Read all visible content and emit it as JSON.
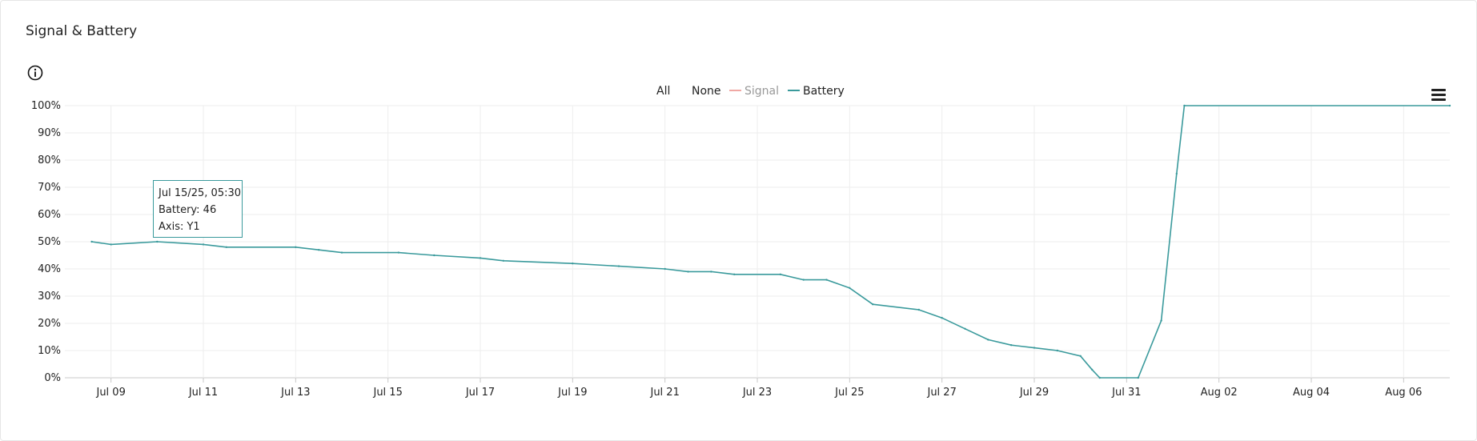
{
  "title": "Signal & Battery",
  "icons": {
    "info": "info-icon",
    "menu": "hamburger-menu-icon"
  },
  "legend": {
    "all": "All",
    "none": "None",
    "items": [
      {
        "label": "Signal",
        "color": "#f0a8a4",
        "hidden": true
      },
      {
        "label": "Battery",
        "color": "#3a9a9c",
        "hidden": false
      }
    ]
  },
  "tooltip": {
    "line1": "Jul 15/25, 05:30",
    "line2": "Battery: 46",
    "line3": "Axis: Y1"
  },
  "chart_data": {
    "type": "line",
    "title": "",
    "xlabel": "",
    "ylabel": "",
    "ylim": [
      0,
      100
    ],
    "yticks": [
      "0%",
      "10%",
      "20%",
      "30%",
      "40%",
      "50%",
      "60%",
      "70%",
      "80%",
      "90%",
      "100%"
    ],
    "xticks": [
      "Jul 09",
      "Jul 11",
      "Jul 13",
      "Jul 15",
      "Jul 17",
      "Jul 19",
      "Jul 21",
      "Jul 23",
      "Jul 25",
      "Jul 27",
      "Jul 29",
      "Jul 31",
      "Aug 02",
      "Aug 04",
      "Aug 06"
    ],
    "xlim": [
      "2025-07-08",
      "2025-08-07"
    ],
    "grid": true,
    "legend_position": "top-center",
    "series": [
      {
        "name": "Battery",
        "color": "#3a9a9c",
        "points": [
          [
            "2025-07-08 14:00",
            50
          ],
          [
            "2025-07-09 00:00",
            49
          ],
          [
            "2025-07-10 00:00",
            50
          ],
          [
            "2025-07-11 00:00",
            49
          ],
          [
            "2025-07-11 12:00",
            48
          ],
          [
            "2025-07-13 00:00",
            48
          ],
          [
            "2025-07-13 12:00",
            47
          ],
          [
            "2025-07-14 00:00",
            46
          ],
          [
            "2025-07-15 05:30",
            46
          ],
          [
            "2025-07-16 00:00",
            45
          ],
          [
            "2025-07-17 00:00",
            44
          ],
          [
            "2025-07-17 12:00",
            43
          ],
          [
            "2025-07-19 00:00",
            42
          ],
          [
            "2025-07-20 00:00",
            41
          ],
          [
            "2025-07-21 00:00",
            40
          ],
          [
            "2025-07-21 12:00",
            39
          ],
          [
            "2025-07-22 00:00",
            39
          ],
          [
            "2025-07-22 12:00",
            38
          ],
          [
            "2025-07-23 12:00",
            38
          ],
          [
            "2025-07-24 00:00",
            36
          ],
          [
            "2025-07-24 12:00",
            36
          ],
          [
            "2025-07-25 00:00",
            33
          ],
          [
            "2025-07-25 12:00",
            27
          ],
          [
            "2025-07-26 12:00",
            25
          ],
          [
            "2025-07-27 00:00",
            22
          ],
          [
            "2025-07-27 12:00",
            18
          ],
          [
            "2025-07-28 00:00",
            14
          ],
          [
            "2025-07-28 12:00",
            12
          ],
          [
            "2025-07-29 00:00",
            11
          ],
          [
            "2025-07-29 12:00",
            10
          ],
          [
            "2025-07-30 00:00",
            8
          ],
          [
            "2025-07-30 06:00",
            3
          ],
          [
            "2025-07-30 10:00",
            0
          ],
          [
            "2025-07-31 06:00",
            0
          ],
          [
            "2025-07-31 18:00",
            21
          ],
          [
            "2025-08-01 02:00",
            75
          ],
          [
            "2025-08-01 06:00",
            100
          ],
          [
            "2025-08-07 00:00",
            100
          ]
        ]
      }
    ]
  }
}
